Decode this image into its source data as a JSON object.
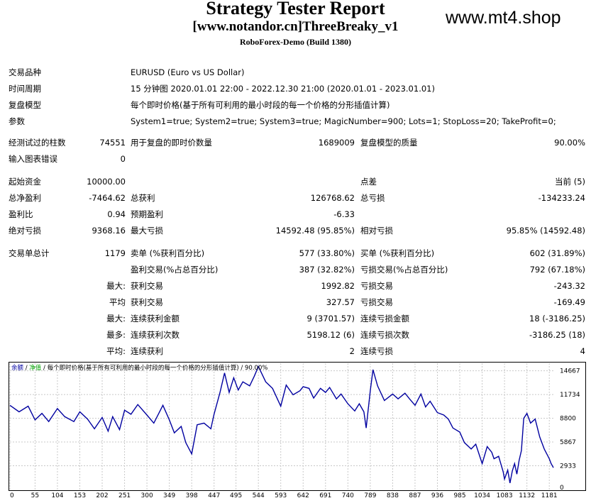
{
  "header": {
    "title": "Strategy Tester Report",
    "subtitle": "[www.notandor.cn]ThreeBreaky_v1",
    "server": "RoboForex-Demo (Build 1380)",
    "watermark": "www.mt4.shop"
  },
  "info": {
    "symbol_label": "交易品种",
    "symbol_value": "EURUSD (Euro vs US Dollar)",
    "period_label": "时间周期",
    "period_value": "15 分钟图 2020.01.01 22:00 - 2022.12.30 21:00 (2020.01.01 - 2023.01.01)",
    "model_label": "复盘模型",
    "model_value": "每个即时价格(基于所有可利用的最小时段的每一个价格的分形插值计算)",
    "params_label": "参数",
    "params_value": "System1=true; System2=true; System3=true; MagicNumber=900; Lots=1; StopLoss=20; TakeProfit=0;"
  },
  "quality": {
    "bars_label": "经测试过的柱数",
    "bars_value": "74551",
    "ticks_label": "用于复盘的即时价数量",
    "ticks_value": "1689009",
    "quality_label": "复盘模型的质量",
    "quality_value": "90.00%",
    "errors_label": "输入图表错误",
    "errors_value": "0"
  },
  "results": {
    "deposit_label": "起始资金",
    "deposit_value": "10000.00",
    "spread_label": "点差",
    "spread_value": "当前 (5)",
    "net_label": "总净盈利",
    "net_value": "-7464.62",
    "gross_profit_label": "总获利",
    "gross_profit_value": "126768.62",
    "gross_loss_label": "总亏损",
    "gross_loss_value": "-134233.24",
    "pf_label": "盈利比",
    "pf_value": "0.94",
    "expected_label": "预期盈利",
    "expected_value": "-6.33",
    "abs_dd_label": "绝对亏损",
    "abs_dd_value": "9368.16",
    "max_dd_label": "最大亏损",
    "max_dd_value": "14592.48 (95.85%)",
    "rel_dd_label": "相对亏损",
    "rel_dd_value": "95.85% (14592.48)"
  },
  "trades": {
    "total_label": "交易单总计",
    "total_value": "1179",
    "short_label": "卖单 (%获利百分比)",
    "short_value": "577 (33.80%)",
    "long_label": "买单 (%获利百分比)",
    "long_value": "602 (31.89%)",
    "profit_trades_label": "盈利交易(%占总百分比)",
    "profit_trades_value": "387 (32.82%)",
    "loss_trades_label": "亏损交易(%占总百分比)",
    "loss_trades_value": "792 (67.18%)",
    "largest_label": "最大:",
    "largest_profit_label": "获利交易",
    "largest_profit_value": "1992.82",
    "largest_loss_label": "亏损交易",
    "largest_loss_value": "-243.32",
    "average_label": "平均",
    "average_profit_label": "获利交易",
    "average_profit_value": "327.57",
    "average_loss_label": "亏损交易",
    "average_loss_value": "-169.49",
    "max_label": "最大:",
    "max_consec_wins_label": "连续获利金额",
    "max_consec_wins_value": "9 (3701.57)",
    "max_consec_losses_label": "连续亏损金额",
    "max_consec_losses_value": "18 (-3186.25)",
    "maximal_label": "最多:",
    "maximal_consec_profit_label": "连续获利次数",
    "maximal_consec_profit_value": "5198.12 (6)",
    "maximal_consec_loss_label": "连续亏损次数",
    "maximal_consec_loss_value": "-3186.25 (18)",
    "avg_label": "平均:",
    "avg_consec_wins_label": "连续获利",
    "avg_consec_wins_value": "2",
    "avg_consec_losses_label": "连续亏损",
    "avg_consec_losses_value": "4"
  },
  "chart_data": {
    "type": "line",
    "legend": {
      "balance": "余额",
      "sep1": " / ",
      "equity": "净值",
      "sep2": " / ",
      "model": "每个即时价格(基于所有可利用的最小时段的每一个价格的分形插值计算)",
      "sep3": " / ",
      "quality": "90.00%"
    },
    "x_ticks": [
      0,
      55,
      104,
      153,
      202,
      251,
      300,
      349,
      398,
      447,
      495,
      544,
      593,
      642,
      691,
      740,
      789,
      838,
      887,
      936,
      985,
      1034,
      1083,
      1132,
      1181
    ],
    "y_ticks": [
      0,
      2933,
      5867,
      8800,
      11734,
      14667
    ],
    "xlim": [
      0,
      1190
    ],
    "ylim": [
      0,
      15600
    ],
    "colors": {
      "balance": "#0000a0",
      "equity": "#00a000",
      "grid": "#c8c8c8"
    },
    "series": [
      {
        "name": "余额",
        "x": [
          0,
          20,
          40,
          55,
          70,
          85,
          104,
          120,
          140,
          153,
          170,
          185,
          202,
          215,
          225,
          240,
          251,
          265,
          280,
          300,
          315,
          335,
          349,
          360,
          375,
          385,
          398,
          410,
          425,
          440,
          447,
          460,
          470,
          480,
          490,
          500,
          510,
          525,
          535,
          544,
          550,
          560,
          575,
          593,
          605,
          620,
          635,
          642,
          655,
          665,
          680,
          691,
          700,
          715,
          725,
          740,
          755,
          765,
          775,
          780,
          789,
          795,
          805,
          820,
          838,
          850,
          865,
          875,
          887,
          900,
          910,
          920,
          936,
          950,
          960,
          970,
          985,
          995,
          1010,
          1020,
          1034,
          1045,
          1055,
          1060,
          1070,
          1080,
          1083,
          1090,
          1095,
          1100,
          1105,
          1110,
          1115,
          1120,
          1125,
          1132,
          1140,
          1150,
          1160,
          1170,
          1181,
          1185,
          1190
        ],
        "y": [
          10400,
          9600,
          10300,
          8600,
          9400,
          8400,
          10000,
          9000,
          8400,
          9600,
          8700,
          7500,
          8900,
          7200,
          9000,
          7400,
          9800,
          9300,
          10500,
          9200,
          8200,
          10400,
          8600,
          7000,
          7800,
          5800,
          4400,
          8000,
          8200,
          7500,
          9300,
          12000,
          14400,
          12000,
          13800,
          12300,
          13300,
          12800,
          14000,
          15200,
          14500,
          13300,
          12500,
          10300,
          12900,
          11700,
          12200,
          12700,
          12500,
          11300,
          12500,
          12000,
          12600,
          11200,
          11800,
          10600,
          9700,
          10600,
          9600,
          7600,
          12200,
          14800,
          12800,
          11000,
          11800,
          11200,
          11900,
          11200,
          10400,
          11800,
          10200,
          10900,
          9500,
          9200,
          8700,
          7600,
          7100,
          5800,
          5000,
          5600,
          3200,
          5300,
          4600,
          3800,
          4100,
          2200,
          1300,
          2400,
          800,
          2300,
          3200,
          1900,
          3600,
          4800,
          8800,
          9400,
          8200,
          8700,
          6500,
          5000,
          3800,
          3200,
          2700
        ]
      }
    ]
  }
}
